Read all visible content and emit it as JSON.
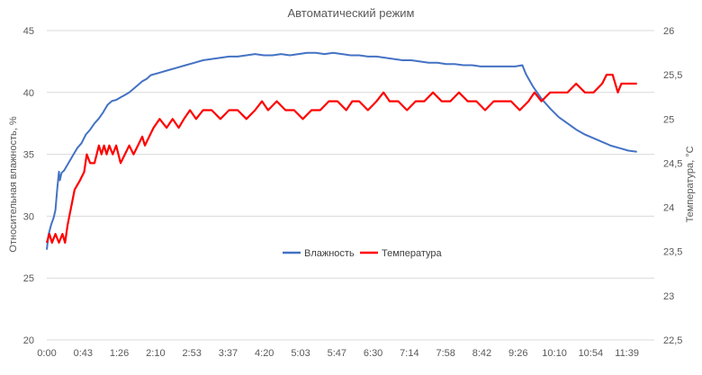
{
  "chart_data": {
    "type": "line",
    "title": "Автоматический режим",
    "xlabel": "",
    "ylabel_left": "Относительная влажность, %",
    "ylabel_right": "Температура, °С",
    "x_ticks": [
      "0:00",
      "0:43",
      "1:26",
      "2:10",
      "2:53",
      "3:37",
      "4:20",
      "5:03",
      "5:47",
      "6:30",
      "7:14",
      "7:58",
      "8:42",
      "9:26",
      "10:10",
      "10:54",
      "11:39"
    ],
    "x_range_minutes": [
      0,
      700
    ],
    "ylim_left": [
      20,
      45
    ],
    "ylim_right": [
      22.5,
      26
    ],
    "yticks_left": [
      "20",
      "25",
      "30",
      "35",
      "40",
      "45"
    ],
    "yticks_right": [
      "22,5",
      "23",
      "23,5",
      "24",
      "24,5",
      "25",
      "25,5",
      "26"
    ],
    "grid": "horizontal",
    "legend_position": "center",
    "series": [
      {
        "name": "Влажность",
        "axis": "left",
        "color": "#4472c4",
        "points": [
          [
            0,
            27.3
          ],
          [
            2,
            28.5
          ],
          [
            5,
            29.3
          ],
          [
            8,
            29.9
          ],
          [
            10,
            30.5
          ],
          [
            12,
            32.2
          ],
          [
            14,
            33.6
          ],
          [
            15,
            32.9
          ],
          [
            17,
            33.5
          ],
          [
            20,
            33.7
          ],
          [
            25,
            34.3
          ],
          [
            30,
            34.9
          ],
          [
            35,
            35.5
          ],
          [
            40,
            35.9
          ],
          [
            45,
            36.6
          ],
          [
            50,
            37.0
          ],
          [
            55,
            37.5
          ],
          [
            60,
            37.9
          ],
          [
            65,
            38.4
          ],
          [
            70,
            39.0
          ],
          [
            75,
            39.3
          ],
          [
            80,
            39.4
          ],
          [
            85,
            39.6
          ],
          [
            90,
            39.8
          ],
          [
            95,
            40.0
          ],
          [
            100,
            40.3
          ],
          [
            105,
            40.6
          ],
          [
            110,
            40.9
          ],
          [
            115,
            41.1
          ],
          [
            120,
            41.4
          ],
          [
            125,
            41.5
          ],
          [
            130,
            41.6
          ],
          [
            140,
            41.8
          ],
          [
            150,
            42.0
          ],
          [
            160,
            42.2
          ],
          [
            170,
            42.4
          ],
          [
            180,
            42.6
          ],
          [
            190,
            42.7
          ],
          [
            200,
            42.8
          ],
          [
            210,
            42.9
          ],
          [
            220,
            42.9
          ],
          [
            230,
            43.0
          ],
          [
            240,
            43.1
          ],
          [
            250,
            43.0
          ],
          [
            260,
            43.0
          ],
          [
            270,
            43.1
          ],
          [
            280,
            43.0
          ],
          [
            290,
            43.1
          ],
          [
            300,
            43.2
          ],
          [
            310,
            43.2
          ],
          [
            320,
            43.1
          ],
          [
            330,
            43.2
          ],
          [
            340,
            43.1
          ],
          [
            350,
            43.0
          ],
          [
            360,
            43.0
          ],
          [
            370,
            42.9
          ],
          [
            380,
            42.9
          ],
          [
            390,
            42.8
          ],
          [
            400,
            42.7
          ],
          [
            410,
            42.6
          ],
          [
            420,
            42.6
          ],
          [
            430,
            42.5
          ],
          [
            440,
            42.4
          ],
          [
            450,
            42.4
          ],
          [
            460,
            42.3
          ],
          [
            470,
            42.3
          ],
          [
            480,
            42.2
          ],
          [
            490,
            42.2
          ],
          [
            500,
            42.1
          ],
          [
            510,
            42.1
          ],
          [
            520,
            42.1
          ],
          [
            530,
            42.1
          ],
          [
            540,
            42.1
          ],
          [
            548,
            42.2
          ],
          [
            552,
            41.5
          ],
          [
            556,
            41.0
          ],
          [
            560,
            40.5
          ],
          [
            565,
            40.0
          ],
          [
            570,
            39.5
          ],
          [
            580,
            38.7
          ],
          [
            590,
            38.0
          ],
          [
            600,
            37.5
          ],
          [
            610,
            37.0
          ],
          [
            620,
            36.6
          ],
          [
            630,
            36.3
          ],
          [
            640,
            36.0
          ],
          [
            650,
            35.7
          ],
          [
            660,
            35.5
          ],
          [
            670,
            35.3
          ],
          [
            680,
            35.2
          ]
        ]
      },
      {
        "name": "Температура",
        "axis": "right",
        "color": "#ff0000",
        "points": [
          [
            0,
            23.6
          ],
          [
            3,
            23.7
          ],
          [
            6,
            23.6
          ],
          [
            10,
            23.7
          ],
          [
            14,
            23.6
          ],
          [
            18,
            23.7
          ],
          [
            21,
            23.6
          ],
          [
            24,
            23.8
          ],
          [
            28,
            24.0
          ],
          [
            32,
            24.2
          ],
          [
            38,
            24.3
          ],
          [
            43,
            24.4
          ],
          [
            46,
            24.6
          ],
          [
            50,
            24.5
          ],
          [
            55,
            24.5
          ],
          [
            60,
            24.7
          ],
          [
            63,
            24.6
          ],
          [
            66,
            24.7
          ],
          [
            69,
            24.6
          ],
          [
            72,
            24.7
          ],
          [
            76,
            24.6
          ],
          [
            80,
            24.7
          ],
          [
            85,
            24.5
          ],
          [
            90,
            24.6
          ],
          [
            95,
            24.7
          ],
          [
            100,
            24.6
          ],
          [
            105,
            24.7
          ],
          [
            110,
            24.8
          ],
          [
            113,
            24.7
          ],
          [
            118,
            24.8
          ],
          [
            123,
            24.9
          ],
          [
            130,
            25.0
          ],
          [
            138,
            24.9
          ],
          [
            145,
            25.0
          ],
          [
            152,
            24.9
          ],
          [
            158,
            25.0
          ],
          [
            165,
            25.1
          ],
          [
            172,
            25.0
          ],
          [
            180,
            25.1
          ],
          [
            190,
            25.1
          ],
          [
            200,
            25.0
          ],
          [
            210,
            25.1
          ],
          [
            220,
            25.1
          ],
          [
            230,
            25.0
          ],
          [
            240,
            25.1
          ],
          [
            248,
            25.2
          ],
          [
            255,
            25.1
          ],
          [
            265,
            25.2
          ],
          [
            275,
            25.1
          ],
          [
            285,
            25.1
          ],
          [
            295,
            25.0
          ],
          [
            305,
            25.1
          ],
          [
            315,
            25.1
          ],
          [
            325,
            25.2
          ],
          [
            335,
            25.2
          ],
          [
            345,
            25.1
          ],
          [
            352,
            25.2
          ],
          [
            360,
            25.2
          ],
          [
            370,
            25.1
          ],
          [
            380,
            25.2
          ],
          [
            388,
            25.3
          ],
          [
            395,
            25.2
          ],
          [
            405,
            25.2
          ],
          [
            415,
            25.1
          ],
          [
            425,
            25.2
          ],
          [
            435,
            25.2
          ],
          [
            445,
            25.3
          ],
          [
            455,
            25.2
          ],
          [
            465,
            25.2
          ],
          [
            475,
            25.3
          ],
          [
            485,
            25.2
          ],
          [
            495,
            25.2
          ],
          [
            505,
            25.1
          ],
          [
            515,
            25.2
          ],
          [
            525,
            25.2
          ],
          [
            535,
            25.2
          ],
          [
            545,
            25.1
          ],
          [
            555,
            25.2
          ],
          [
            562,
            25.3
          ],
          [
            570,
            25.2
          ],
          [
            580,
            25.3
          ],
          [
            590,
            25.3
          ],
          [
            600,
            25.3
          ],
          [
            610,
            25.4
          ],
          [
            620,
            25.3
          ],
          [
            630,
            25.3
          ],
          [
            640,
            25.4
          ],
          [
            645,
            25.5
          ],
          [
            652,
            25.5
          ],
          [
            658,
            25.3
          ],
          [
            662,
            25.4
          ],
          [
            670,
            25.4
          ],
          [
            680,
            25.4
          ]
        ]
      }
    ]
  }
}
